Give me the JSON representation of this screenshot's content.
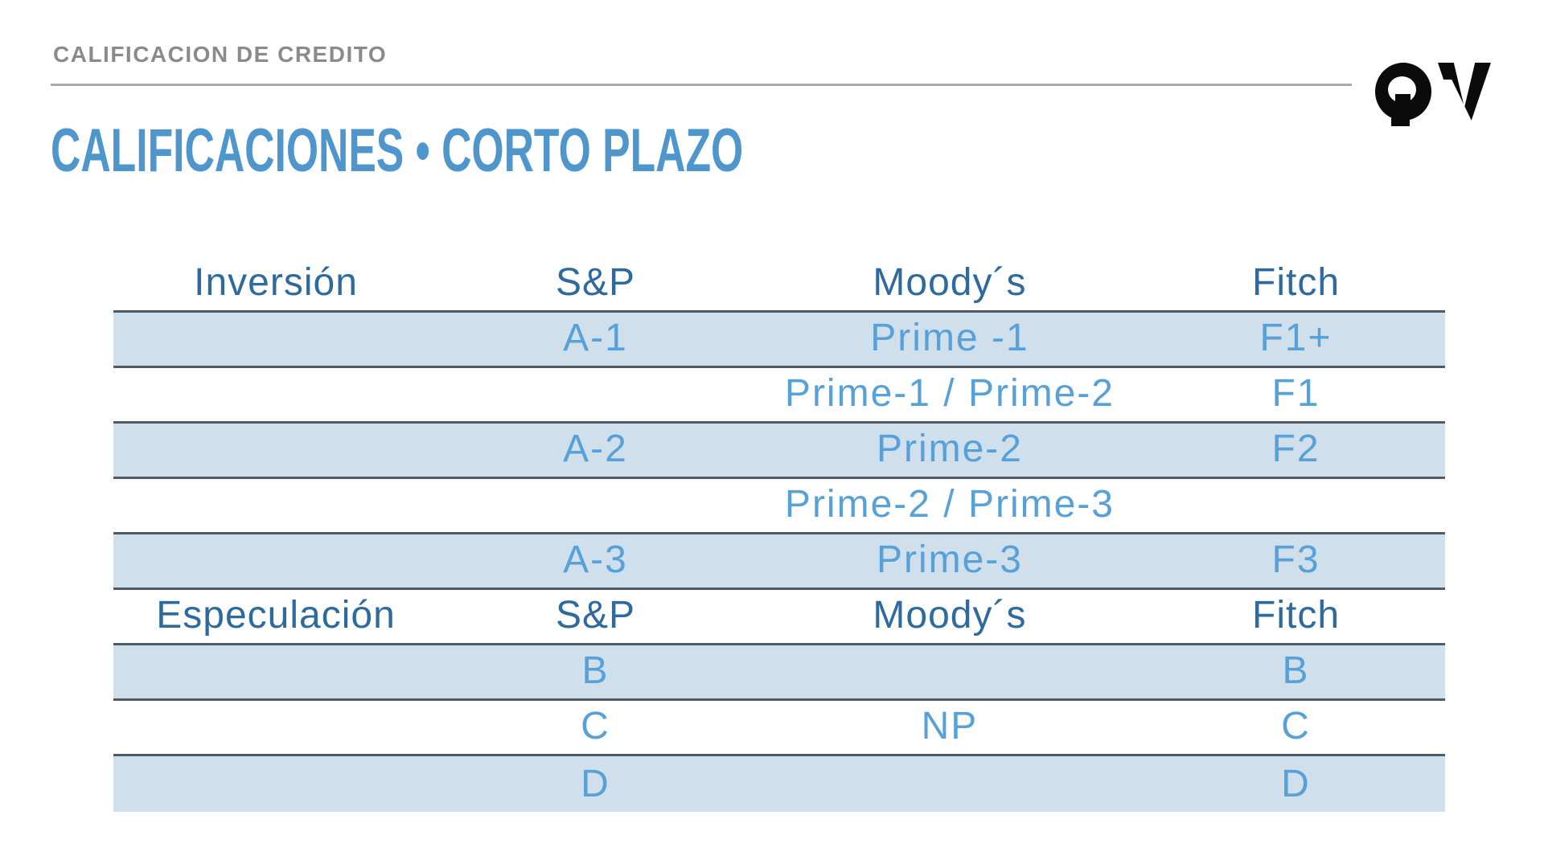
{
  "kicker": "CALIFICACION DE CREDITO",
  "title": "CALIFICACIONES • CORTO PLAZO",
  "logo": {
    "name": "QAV logo"
  },
  "colors": {
    "accent_blue": "#4f96cc",
    "header_blue": "#2e6a9e",
    "value_blue": "#57a1d8",
    "band_blue": "#cfdfec",
    "border_gray": "#505a63",
    "kicker_gray": "#8a8a8a",
    "rule_gray": "#a8a8a8",
    "logo_black": "#0b0b0b"
  },
  "table": {
    "rows": [
      {
        "type": "header",
        "cells": [
          "Inversión",
          "S&P",
          "Moody´s",
          "Fitch"
        ]
      },
      {
        "type": "data",
        "shaded": true,
        "cells": [
          "",
          "A-1",
          "Prime -1",
          "F1+"
        ]
      },
      {
        "type": "data",
        "shaded": false,
        "cells": [
          "",
          "",
          "Prime-1 / Prime-2",
          "F1"
        ]
      },
      {
        "type": "data",
        "shaded": true,
        "cells": [
          "",
          "A-2",
          "Prime-2",
          "F2"
        ]
      },
      {
        "type": "data",
        "shaded": false,
        "cells": [
          "",
          "",
          "Prime-2 / Prime-3",
          ""
        ]
      },
      {
        "type": "data",
        "shaded": true,
        "cells": [
          "",
          "A-3",
          "Prime-3",
          "F3"
        ]
      },
      {
        "type": "header",
        "cells": [
          "Especulación",
          "S&P",
          "Moody´s",
          "Fitch"
        ]
      },
      {
        "type": "data",
        "shaded": true,
        "cells": [
          "",
          "B",
          "",
          "B"
        ]
      },
      {
        "type": "data",
        "shaded": false,
        "cells": [
          "",
          "C",
          "NP",
          "C"
        ]
      },
      {
        "type": "data",
        "shaded": true,
        "cells": [
          "",
          "D",
          "",
          "D"
        ]
      }
    ]
  }
}
